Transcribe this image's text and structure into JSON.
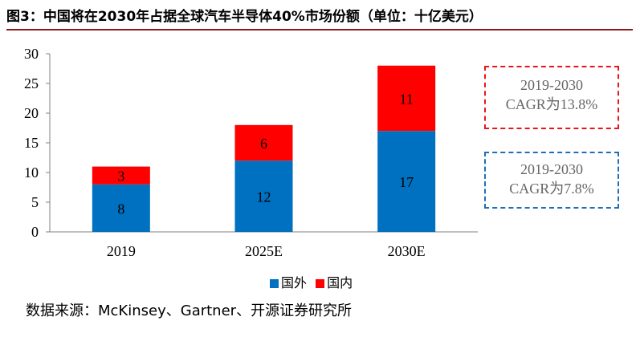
{
  "title": "图3：中国将在2030年占据全球汽车半导体40%市场份额（单位：十亿美元）",
  "source": "数据来源：McKinsey、Gartner、开源证券研究所",
  "annotations": [
    {
      "line1": "2019-2030",
      "line2": "CAGR为13.8%",
      "color": "#e8161b"
    },
    {
      "line1": "2019-2030",
      "line2": "CAGR为7.8%",
      "color": "#1f6fb6"
    }
  ],
  "chart_data": {
    "type": "bar",
    "stacked": true,
    "categories": [
      "2019",
      "2025E",
      "2030E"
    ],
    "series": [
      {
        "name": "国外",
        "values": [
          8,
          12,
          17
        ],
        "color": "#0070c0"
      },
      {
        "name": "国内",
        "values": [
          3,
          6,
          11
        ],
        "color": "#ff0000"
      }
    ],
    "ylim": [
      0,
      30
    ],
    "yticks": [
      0,
      5,
      10,
      15,
      20,
      25,
      30
    ],
    "legend_position": "bottom",
    "grid": false
  }
}
